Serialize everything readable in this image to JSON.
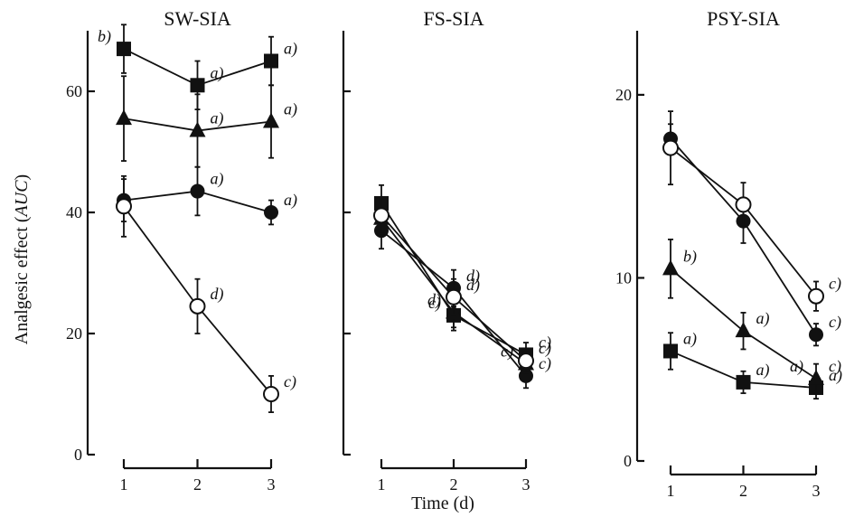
{
  "chart_data": {
    "type": "line",
    "ylabel_main": "Analgesic effect (",
    "ylabel_unit": "AUC",
    "ylabel_close": ")",
    "xlabel": "Time (d)",
    "panels": [
      {
        "title": "SW-SIA",
        "x": [
          1,
          2,
          3
        ],
        "ylim": [
          0,
          70
        ],
        "yticks": [
          0,
          20,
          40,
          60
        ],
        "series": [
          {
            "marker": "square",
            "values": [
              67,
              61,
              65
            ],
            "errors": [
              4,
              4,
              4
            ],
            "annotations": [
              {
                "i": 0,
                "text": "b)",
                "side": "left"
              },
              {
                "i": 1,
                "text": "a)",
                "side": "right"
              },
              {
                "i": 2,
                "text": "a)",
                "side": "right"
              }
            ]
          },
          {
            "marker": "triangle",
            "values": [
              55.5,
              53.5,
              55
            ],
            "errors": [
              7,
              6,
              6
            ],
            "annotations": [
              {
                "i": 1,
                "text": "a)",
                "side": "right"
              },
              {
                "i": 2,
                "text": "a)",
                "side": "right"
              }
            ]
          },
          {
            "marker": "filled-circle",
            "values": [
              42,
              43.5,
              40
            ],
            "errors": [
              3.5,
              4,
              2
            ],
            "annotations": [
              {
                "i": 1,
                "text": "a)",
                "side": "right"
              },
              {
                "i": 2,
                "text": "a)",
                "side": "right"
              }
            ]
          },
          {
            "marker": "open-circle",
            "values": [
              41,
              24.5,
              10
            ],
            "errors": [
              5,
              4.5,
              3
            ],
            "annotations": [
              {
                "i": 1,
                "text": "d)",
                "side": "right"
              },
              {
                "i": 2,
                "text": "c)",
                "side": "right"
              }
            ]
          }
        ]
      },
      {
        "title": "FS-SIA",
        "x": [
          1,
          2,
          3
        ],
        "ylim": [
          0,
          70
        ],
        "yticks": [],
        "series": [
          {
            "marker": "square",
            "values": [
              41.5,
              23,
              16.5
            ],
            "errors": [
              3,
              2.5,
              2
            ],
            "annotations": [
              {
                "i": 1,
                "text": "c)",
                "side": "left"
              },
              {
                "i": 2,
                "text": "c)",
                "side": "right"
              }
            ]
          },
          {
            "marker": "triangle",
            "values": [
              39,
              23.5,
              15
            ],
            "errors": [
              3,
              2.5,
              2
            ],
            "annotations": [
              {
                "i": 1,
                "text": "d)",
                "side": "left"
              },
              {
                "i": 2,
                "text": "c)",
                "side": "left"
              }
            ]
          },
          {
            "marker": "filled-circle",
            "values": [
              37,
              27.5,
              13
            ],
            "errors": [
              3,
              3,
              2
            ],
            "annotations": [
              {
                "i": 1,
                "text": "d)",
                "side": "right"
              },
              {
                "i": 2,
                "text": "c)",
                "side": "right"
              }
            ]
          },
          {
            "marker": "open-circle",
            "values": [
              39.5,
              26,
              15.5
            ],
            "errors": [
              3,
              3,
              2
            ],
            "annotations": [
              {
                "i": 1,
                "text": "d)",
                "side": "right"
              },
              {
                "i": 2,
                "text": "c)",
                "side": "right"
              }
            ]
          }
        ]
      },
      {
        "title": "PSY-SIA",
        "x": [
          1,
          2,
          3
        ],
        "ylim": [
          0,
          23.5
        ],
        "yticks": [
          0,
          10,
          20
        ],
        "series": [
          {
            "marker": "square",
            "values": [
              6,
              4.3,
              4
            ],
            "errors": [
              1,
              0.6,
              0.6
            ],
            "annotations": [
              {
                "i": 0,
                "text": "a)",
                "side": "right"
              },
              {
                "i": 1,
                "text": "a)",
                "side": "right"
              },
              {
                "i": 2,
                "text": "a)",
                "side": "right"
              }
            ]
          },
          {
            "marker": "triangle",
            "values": [
              10.5,
              7.1,
              4.5
            ],
            "errors": [
              1.6,
              1,
              0.8
            ],
            "annotations": [
              {
                "i": 0,
                "text": "b)",
                "side": "right"
              },
              {
                "i": 1,
                "text": "a)",
                "side": "right"
              },
              {
                "i": 2,
                "text": "a)",
                "side": "left"
              },
              {
                "i": 2,
                "text": "c)",
                "side": "right"
              }
            ]
          },
          {
            "marker": "filled-circle",
            "values": [
              17.6,
              13.1,
              6.9
            ],
            "errors": [
              0.8,
              1.2,
              0.6
            ],
            "annotations": [
              {
                "i": 2,
                "text": "c)",
                "side": "right"
              }
            ]
          },
          {
            "marker": "open-circle",
            "values": [
              17.1,
              14,
              9
            ],
            "errors": [
              2,
              1.2,
              0.8
            ],
            "annotations": [
              {
                "i": 2,
                "text": "c)",
                "side": "right"
              }
            ]
          }
        ]
      }
    ]
  }
}
